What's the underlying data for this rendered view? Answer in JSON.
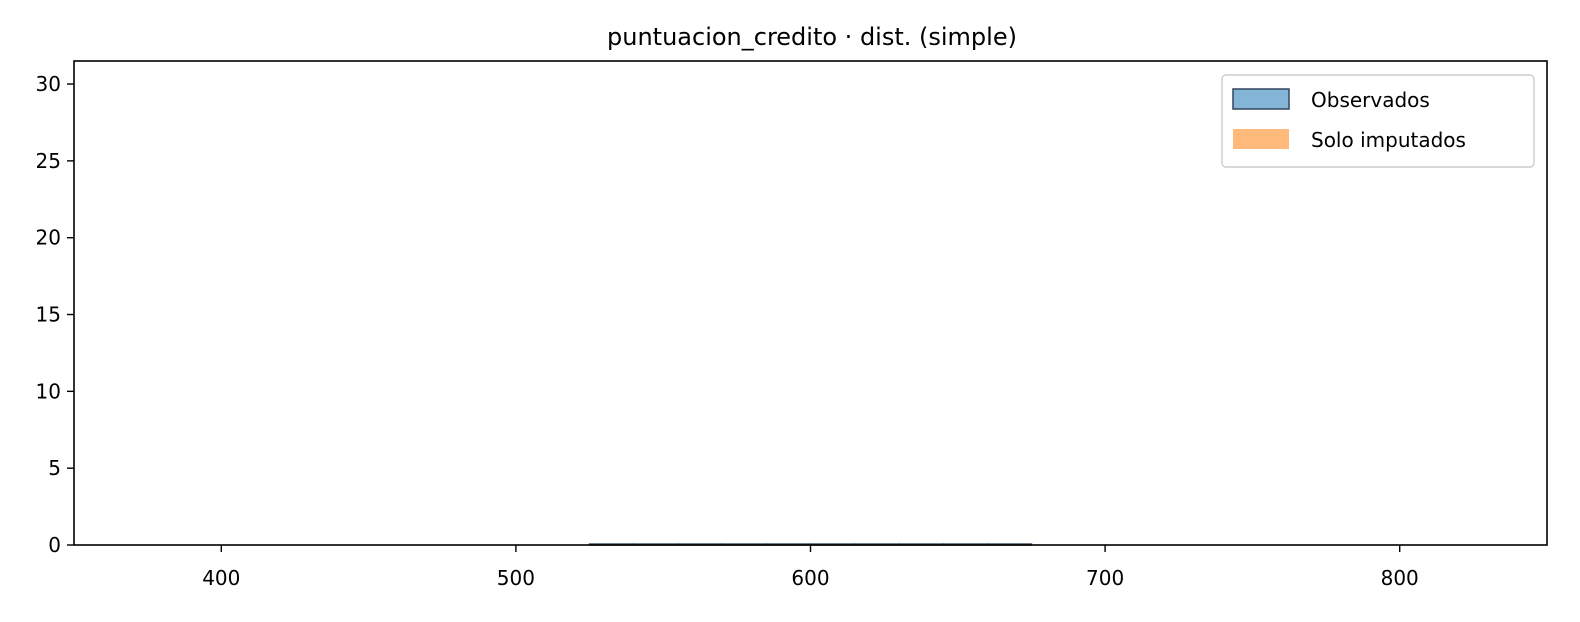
{
  "chart_data": {
    "type": "bar",
    "title": "puntuacion_credito · dist. (simple)",
    "xlabel": "",
    "ylabel": "",
    "xlim": [
      350,
      850
    ],
    "ylim": [
      0,
      31.5
    ],
    "x_ticks": [
      400,
      500,
      600,
      700,
      800
    ],
    "y_ticks": [
      0,
      5,
      10,
      15,
      20,
      25,
      30
    ],
    "grid": false,
    "legend_position": "top-right",
    "bin_edges": [
      525,
      540,
      555,
      570,
      585,
      600,
      615,
      630,
      645,
      660,
      675
    ],
    "series": [
      {
        "name": "Observados",
        "values": [
          0.06,
          0.06,
          0.06,
          0.06,
          0.06,
          0.06,
          0.06,
          0.06,
          0.06,
          0.06
        ],
        "color": "#1f77b4",
        "fill_opacity": 0.55,
        "edge_color": "#31465c"
      },
      {
        "name": "Solo imputados",
        "values": [
          0,
          0,
          0,
          0,
          0,
          0,
          0,
          0,
          0,
          0
        ],
        "color": "#ff7f0e",
        "fill_opacity": 0.55
      }
    ]
  }
}
